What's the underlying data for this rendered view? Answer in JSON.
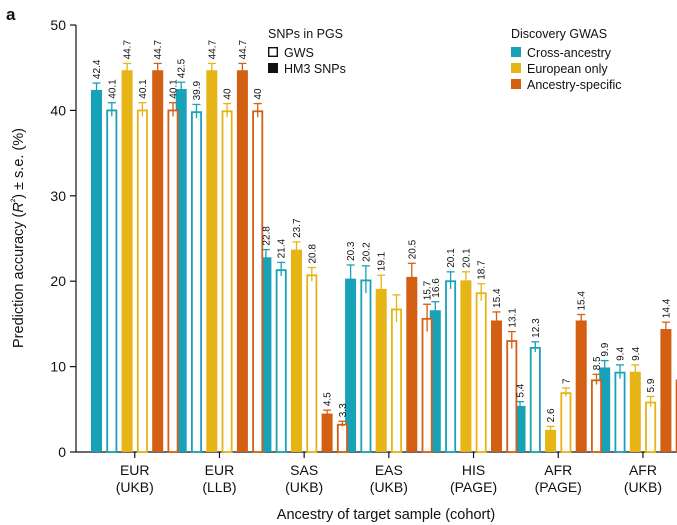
{
  "panel_letter": "a",
  "colors": {
    "cross_ancestry": "#17a2b8",
    "european_only": "#e7b416",
    "ancestry_specific": "#d35f12",
    "axis": "#111111"
  },
  "chart_data": {
    "type": "bar",
    "xlabel": "Ancestry of target sample (cohort)",
    "ylabel": "Prediction accuracy (R²) ± s.e. (%)",
    "ylim": [
      0,
      50
    ],
    "yticks": [
      0,
      10,
      20,
      30,
      40,
      50
    ],
    "grid": false,
    "categories": [
      {
        "line1": "EUR",
        "line2": "(UKB)"
      },
      {
        "line1": "EUR",
        "line2": "(LLB)"
      },
      {
        "line1": "SAS",
        "line2": "(UKB)"
      },
      {
        "line1": "EAS",
        "line2": "(UKB)"
      },
      {
        "line1": "HIS",
        "line2": "(PAGE)"
      },
      {
        "line1": "AFR",
        "line2": "(PAGE)"
      },
      {
        "line1": "AFR",
        "line2": "(UKB)"
      }
    ],
    "fill_legend": {
      "title": "SNPs in PGS",
      "placement": "top-center",
      "items": [
        {
          "key": "open",
          "label": "GWS"
        },
        {
          "key": "filled",
          "label": "HM3 SNPs"
        }
      ]
    },
    "color_legend": {
      "title": "Discovery GWAS",
      "placement": "top-right",
      "items": [
        {
          "key": "cross_ancestry",
          "label": "Cross-ancestry"
        },
        {
          "key": "european_only",
          "label": "European only"
        },
        {
          "key": "ancestry_specific",
          "label": "Ancestry-specific"
        }
      ]
    },
    "series": [
      {
        "gwas": "cross_ancestry",
        "snps": "filled",
        "values": [
          42.4,
          42.5,
          22.8,
          20.3,
          16.6,
          5.4,
          9.9
        ],
        "se": [
          0.8,
          0.8,
          0.9,
          1.6,
          1.0,
          0.5,
          0.8
        ],
        "labels": [
          "42.4",
          "42.5",
          "22.8",
          "20.3",
          "16.6",
          "5.4",
          "9.9"
        ]
      },
      {
        "gwas": "cross_ancestry",
        "snps": "open",
        "values": [
          40.1,
          39.9,
          21.4,
          20.2,
          20.1,
          12.3,
          9.4
        ],
        "se": [
          0.8,
          0.8,
          0.8,
          1.6,
          1.0,
          0.6,
          0.8
        ],
        "labels": [
          "40.1",
          "39.9",
          "21.4",
          "20.2",
          "20.1",
          "12.3",
          "9.4"
        ]
      },
      {
        "gwas": "european_only",
        "snps": "filled",
        "values": [
          44.7,
          44.7,
          23.7,
          19.1,
          20.1,
          2.6,
          9.4
        ],
        "se": [
          0.8,
          0.8,
          0.9,
          1.6,
          1.0,
          0.4,
          0.8
        ],
        "labels": [
          "44.7",
          "44.7",
          "23.7",
          "19.1",
          "20.1",
          "2.6",
          "9.4"
        ]
      },
      {
        "gwas": "european_only",
        "snps": "open",
        "values": [
          40.1,
          40.0,
          20.8,
          16.8,
          18.7,
          7.0,
          5.9
        ],
        "se": [
          0.8,
          0.8,
          0.8,
          1.6,
          1.0,
          0.5,
          0.6
        ],
        "labels": [
          "40.1",
          "40",
          "20.8",
          "",
          "18.7",
          "7",
          "5.9"
        ]
      },
      {
        "gwas": "ancestry_specific",
        "snps": "filled",
        "values": [
          44.7,
          44.7,
          4.5,
          20.5,
          15.4,
          15.4,
          14.4
        ],
        "se": [
          0.8,
          0.8,
          0.4,
          1.6,
          1.0,
          0.7,
          0.8
        ],
        "labels": [
          "44.7",
          "44.7",
          "4.5",
          "20.5",
          "15.4",
          "15.4",
          "14.4"
        ]
      },
      {
        "gwas": "ancestry_specific",
        "snps": "open",
        "values": [
          40.1,
          40.0,
          3.3,
          15.7,
          13.1,
          8.5,
          8.5
        ],
        "se": [
          0.8,
          0.8,
          0.3,
          1.6,
          1.0,
          0.6,
          0.6
        ],
        "labels": [
          "40.1",
          "40",
          "3.3",
          "15.7",
          "13.1",
          "8.5",
          "8.5"
        ]
      }
    ]
  }
}
